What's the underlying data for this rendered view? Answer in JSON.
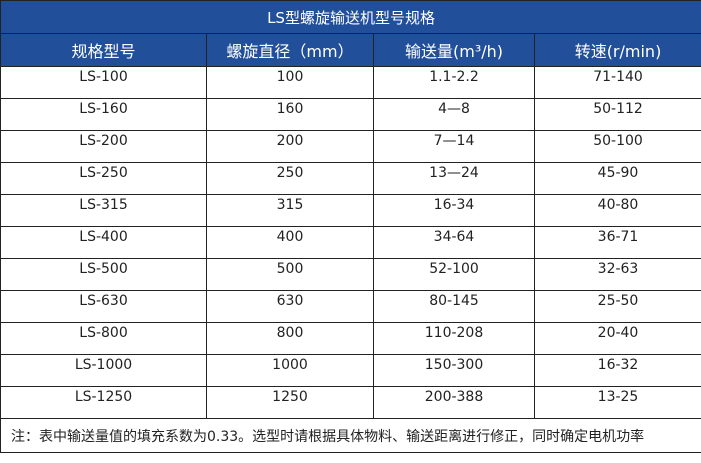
{
  "title": "LS型螺旋输送机型号规格",
  "headers": [
    "规格型号",
    "螺旋直径（mm）",
    "输送量(m³/h)",
    "转速(r/min)"
  ],
  "header_color": "#214f9a",
  "rows": [
    [
      "LS-100",
      "100",
      "1.1-2.2",
      "71-140"
    ],
    [
      "LS-160",
      "160",
      "4—8",
      "50-112"
    ],
    [
      "LS-200",
      "200",
      "7—14",
      "50-100"
    ],
    [
      "LS-250",
      "250",
      "13—24",
      "45-90"
    ],
    [
      "LS-315",
      "315",
      "16-34",
      "40-80"
    ],
    [
      "LS-400",
      "400",
      "34-64",
      "36-71"
    ],
    [
      "LS-500",
      "500",
      "52-100",
      "32-63"
    ],
    [
      "LS-630",
      "630",
      "80-145",
      "25-50"
    ],
    [
      "LS-800",
      "800",
      "110-208",
      "20-40"
    ],
    [
      "LS-1000",
      "1000",
      "150-300",
      "16-32"
    ],
    [
      "LS-1250",
      "1250",
      "200-388",
      "13-25"
    ]
  ],
  "note": "注：表中输送量值的填充系数为0.33。选型时请根据具体物料、输送距离进行修正，同时确定电机功率"
}
